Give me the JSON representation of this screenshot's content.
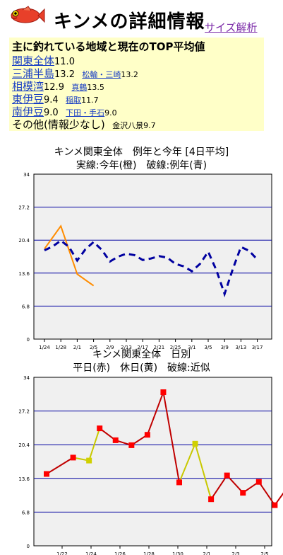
{
  "header": {
    "title": "キンメの詳細情報",
    "link": "サイズ解析"
  },
  "panel": {
    "heading": "主に釣れている地域と現在のTOP平均値",
    "rows": [
      {
        "area": "関東全体",
        "value": "11.0",
        "subs": []
      },
      {
        "area": "三浦半島",
        "value": "13.2",
        "subs": [
          {
            "name": "松輪・三崎",
            "value": "13.2"
          }
        ]
      },
      {
        "area": "相模湾",
        "value": "12.9",
        "subs": [
          {
            "name": "真鶴",
            "value": "13.5"
          }
        ]
      },
      {
        "area": "東伊豆",
        "value": "9.4",
        "subs": [
          {
            "name": "稲取",
            "value": "11.7"
          }
        ]
      },
      {
        "area": "南伊豆",
        "value": "9.0",
        "subs": [
          {
            "name": "下田・手石",
            "value": "9.0"
          }
        ]
      }
    ],
    "other": {
      "label": "その他(情報少なし)",
      "sub": "金沢八景",
      "value": "9.7"
    }
  },
  "chart_data": [
    {
      "type": "line",
      "title": "キンメ関東全体　例年と今年 [4日平均]",
      "subtitle": "実線:今年(橙)　破線:例年(青)",
      "ylim": [
        0,
        34
      ],
      "yticks": [
        "0",
        "6.8",
        "13.6",
        "20.4",
        "27.2",
        "34"
      ],
      "categories": [
        "1/24",
        "1/28",
        "2/1",
        "2/5",
        "2/9",
        "2/13",
        "2/17",
        "2/21",
        "2/25",
        "3/1",
        "3/5",
        "3/9",
        "3/13",
        "3/17"
      ],
      "grid": true,
      "series": [
        {
          "color": "#ff8c00",
          "style": "solid",
          "points": [
            [
              0,
              18.6
            ],
            [
              1,
              23.3
            ],
            [
              2,
              13.4
            ],
            [
              3,
              11.0
            ]
          ]
        },
        {
          "color": "#0000a0",
          "style": "dashed",
          "points": [
            [
              0,
              18.3
            ],
            [
              0.5,
              19.1
            ],
            [
              1,
              20.3
            ],
            [
              1.5,
              19.0
            ],
            [
              2,
              16.2
            ],
            [
              2.5,
              18.5
            ],
            [
              3,
              20.0
            ],
            [
              3.5,
              18.4
            ],
            [
              4,
              16.0
            ],
            [
              4.5,
              17.0
            ],
            [
              5,
              17.6
            ],
            [
              5.5,
              17.3
            ],
            [
              6,
              16.3
            ],
            [
              6.5,
              16.6
            ],
            [
              7,
              17.1
            ],
            [
              7.5,
              16.8
            ],
            [
              8,
              15.5
            ],
            [
              8.5,
              15.0
            ],
            [
              9,
              14.0
            ],
            [
              9.5,
              15.5
            ],
            [
              10,
              18.0
            ],
            [
              10.5,
              14.2
            ],
            [
              11,
              9.3
            ],
            [
              11.5,
              14.4
            ],
            [
              12,
              19.0
            ],
            [
              12.5,
              18.2
            ],
            [
              13,
              16.4
            ]
          ]
        }
      ]
    },
    {
      "type": "line",
      "title": "キンメ関東全体　日別",
      "subtitle": "平日(赤)　休日(黄)　破線:近似",
      "ylim": [
        0,
        34
      ],
      "yticks": [
        "0",
        "6.8",
        "13.6",
        "20.4",
        "27.2",
        "34"
      ],
      "categories": [
        "1/22",
        "1/24",
        "1/26",
        "1/28",
        "1/30",
        "2/1",
        "2/3",
        "2/5"
      ],
      "grid": true,
      "points": [
        {
          "x": 0,
          "y": 14.5,
          "color": "#ff0000"
        },
        {
          "x": 1,
          "y": 17.8,
          "color": "#ff0000"
        },
        {
          "x": 1.6,
          "y": 17.2,
          "color": "#d0d000"
        },
        {
          "x": 2,
          "y": 23.7,
          "color": "#ff0000"
        },
        {
          "x": 2.6,
          "y": 21.3,
          "color": "#ff0000"
        },
        {
          "x": 3.2,
          "y": 20.3,
          "color": "#ff0000"
        },
        {
          "x": 3.8,
          "y": 22.4,
          "color": "#ff0000"
        },
        {
          "x": 4.4,
          "y": 31.0,
          "color": "#ff0000"
        },
        {
          "x": 5,
          "y": 12.8,
          "color": "#ff0000"
        },
        {
          "x": 5.6,
          "y": 20.6,
          "color": "#d0d000"
        },
        {
          "x": 6.2,
          "y": 9.4,
          "color": "#ff0000"
        },
        {
          "x": 6.8,
          "y": 14.2,
          "color": "#ff0000"
        },
        {
          "x": 7.4,
          "y": 10.7,
          "color": "#ff0000"
        },
        {
          "x": 8,
          "y": 12.9,
          "color": "#ff0000"
        },
        {
          "x": 8.6,
          "y": 8.2,
          "color": "#ff0000"
        },
        {
          "x": 9.2,
          "y": 12.7,
          "color": "#ff0000"
        }
      ]
    }
  ]
}
